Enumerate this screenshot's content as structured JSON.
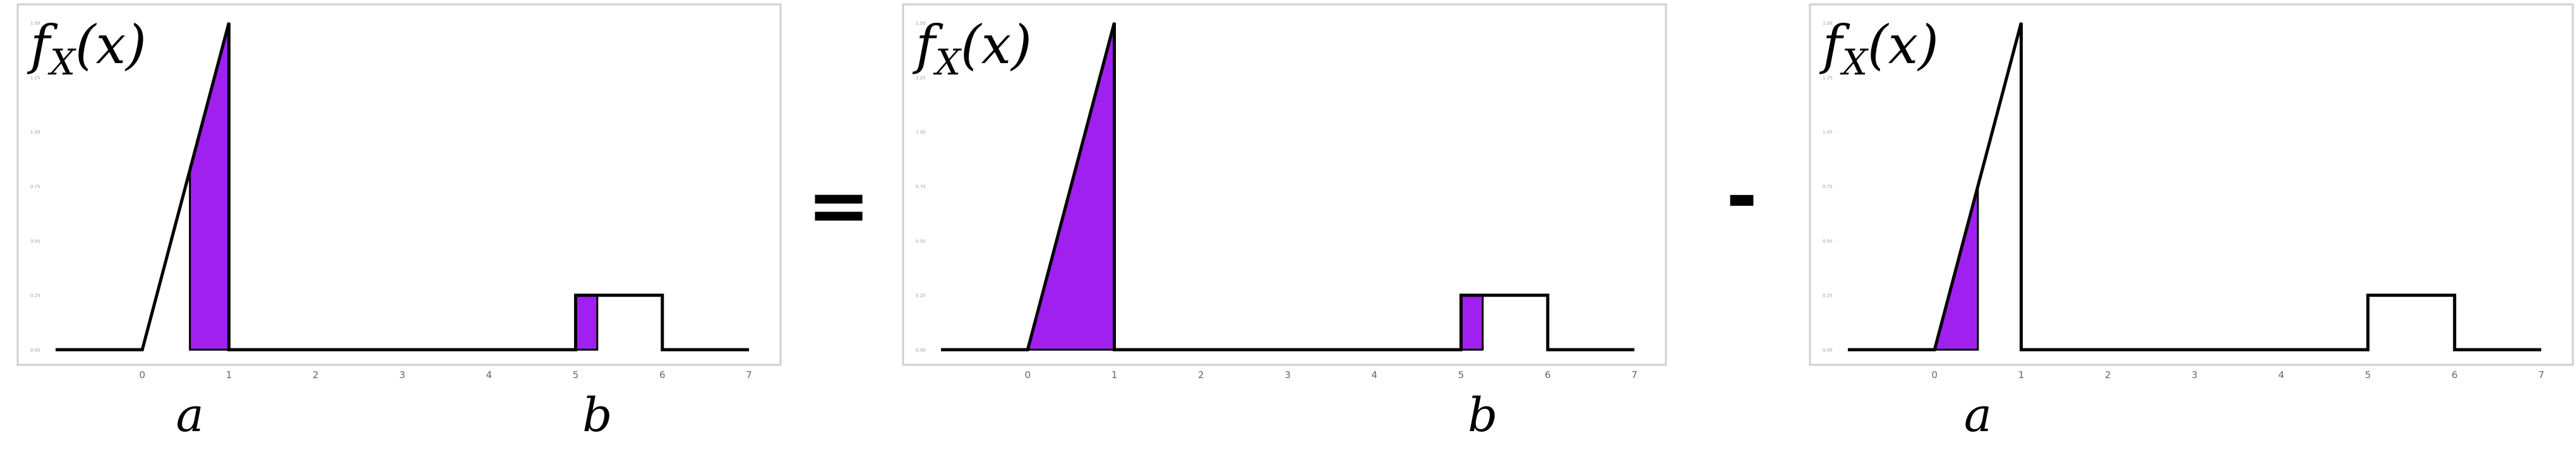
{
  "chart_data": [
    {
      "type": "area",
      "panel": "left",
      "ylabel": "f_X(x)",
      "ylabel_main": "f",
      "ylabel_sub": "X",
      "ylabel_arg": "(x)",
      "x_ticks": [
        "0",
        "1",
        "2",
        "3",
        "4",
        "5",
        "6",
        "7"
      ],
      "y_ticks": [
        "0.00",
        "0.25",
        "0.50",
        "0.75",
        "1.00",
        "1.25",
        "1.50"
      ],
      "xlim": [
        -1,
        7
      ],
      "ylim": [
        0,
        1.5
      ],
      "density": [
        [
          -1,
          0
        ],
        [
          0,
          0
        ],
        [
          1,
          1.5
        ],
        [
          1,
          0
        ],
        [
          5,
          0
        ],
        [
          5,
          0.25
        ],
        [
          6,
          0.25
        ],
        [
          6,
          0
        ],
        [
          7,
          0
        ]
      ],
      "shaded_regions": [
        {
          "from": 0.55,
          "to": 1.0
        },
        {
          "from": 5.0,
          "to": 5.25
        }
      ],
      "point_labels": [
        {
          "text": "a",
          "x": 0.55
        },
        {
          "text": "b",
          "x": 5.25
        }
      ],
      "fill_color": "#a020f0"
    },
    {
      "type": "area",
      "panel": "middle",
      "ylabel": "f_X(x)",
      "ylabel_main": "f",
      "ylabel_sub": "X",
      "ylabel_arg": "(x)",
      "x_ticks": [
        "0",
        "1",
        "2",
        "3",
        "4",
        "5",
        "6",
        "7"
      ],
      "y_ticks": [
        "0.00",
        "0.25",
        "0.50",
        "0.75",
        "1.00",
        "1.25",
        "1.50"
      ],
      "xlim": [
        -1,
        7
      ],
      "ylim": [
        0,
        1.5
      ],
      "density": [
        [
          -1,
          0
        ],
        [
          0,
          0
        ],
        [
          1,
          1.5
        ],
        [
          1,
          0
        ],
        [
          5,
          0
        ],
        [
          5,
          0.25
        ],
        [
          6,
          0.25
        ],
        [
          6,
          0
        ],
        [
          7,
          0
        ]
      ],
      "shaded_regions": [
        {
          "from": 0.0,
          "to": 1.0
        },
        {
          "from": 5.0,
          "to": 5.25
        }
      ],
      "point_labels": [
        {
          "text": "b",
          "x": 5.25
        }
      ],
      "fill_color": "#a020f0"
    },
    {
      "type": "area",
      "panel": "right",
      "ylabel": "f_X(x)",
      "ylabel_main": "f",
      "ylabel_sub": "X",
      "ylabel_arg": "(x)",
      "x_ticks": [
        "0",
        "1",
        "2",
        "3",
        "4",
        "5",
        "6",
        "7"
      ],
      "y_ticks": [
        "0.00",
        "0.25",
        "0.50",
        "0.75",
        "1.00",
        "1.25",
        "1.50"
      ],
      "xlim": [
        -1,
        7
      ],
      "ylim": [
        0,
        1.5
      ],
      "density": [
        [
          -1,
          0
        ],
        [
          0,
          0
        ],
        [
          1,
          1.5
        ],
        [
          1,
          0
        ],
        [
          5,
          0
        ],
        [
          5,
          0.25
        ],
        [
          6,
          0.25
        ],
        [
          6,
          0
        ],
        [
          7,
          0
        ]
      ],
      "shaded_regions": [
        {
          "from": 0.0,
          "to": 0.5
        }
      ],
      "point_labels": [
        {
          "text": "a",
          "x": 0.5
        }
      ],
      "fill_color": "#a020f0"
    }
  ],
  "operators": [
    "=",
    "-"
  ]
}
